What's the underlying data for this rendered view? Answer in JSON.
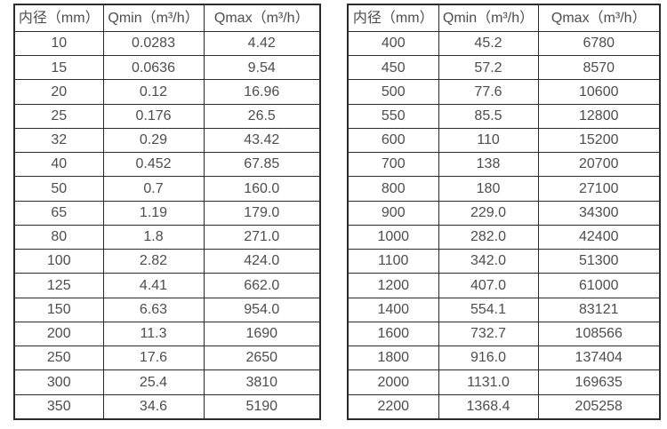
{
  "chart_data": [
    {
      "type": "table",
      "columns": [
        "内径（mm）",
        "Qmin（m³/h）",
        "Qmax（m³/h）"
      ],
      "rows": [
        [
          "10",
          "0.0283",
          "4.42"
        ],
        [
          "15",
          "0.0636",
          "9.54"
        ],
        [
          "20",
          "0.12",
          "16.96"
        ],
        [
          "25",
          "0.176",
          "26.5"
        ],
        [
          "32",
          "0.29",
          "43.42"
        ],
        [
          "40",
          "0.452",
          "67.85"
        ],
        [
          "50",
          "0.7",
          "160.0"
        ],
        [
          "65",
          "1.19",
          "179.0"
        ],
        [
          "80",
          "1.8",
          "271.0"
        ],
        [
          "100",
          "2.82",
          "424.0"
        ],
        [
          "125",
          "4.41",
          "662.0"
        ],
        [
          "150",
          "6.63",
          "954.0"
        ],
        [
          "200",
          "11.3",
          "1690"
        ],
        [
          "250",
          "17.6",
          "2650"
        ],
        [
          "300",
          "25.4",
          "3810"
        ],
        [
          "350",
          "34.6",
          "5190"
        ]
      ]
    },
    {
      "type": "table",
      "columns": [
        "内径（mm）",
        "Qmin（m³/h）",
        "Qmax（m³/h）"
      ],
      "rows": [
        [
          "400",
          "45.2",
          "6780"
        ],
        [
          "450",
          "57.2",
          "8570"
        ],
        [
          "500",
          "77.6",
          "10600"
        ],
        [
          "550",
          "85.5",
          "12800"
        ],
        [
          "600",
          "110",
          "15200"
        ],
        [
          "700",
          "138",
          "20700"
        ],
        [
          "800",
          "180",
          "27100"
        ],
        [
          "900",
          "229.0",
          "34300"
        ],
        [
          "1000",
          "282.0",
          "42400"
        ],
        [
          "1100",
          "342.0",
          "51300"
        ],
        [
          "1200",
          "407.0",
          "61000"
        ],
        [
          "1400",
          "554.1",
          "83121"
        ],
        [
          "1600",
          "732.7",
          "108566"
        ],
        [
          "1800",
          "916.0",
          "137404"
        ],
        [
          "2000",
          "1131.0",
          "169635"
        ],
        [
          "2200",
          "1368.4",
          "205258"
        ]
      ]
    }
  ],
  "colors": {
    "border": "#2b2b2b",
    "text": "#4d4d4d",
    "background": "#ffffff"
  }
}
